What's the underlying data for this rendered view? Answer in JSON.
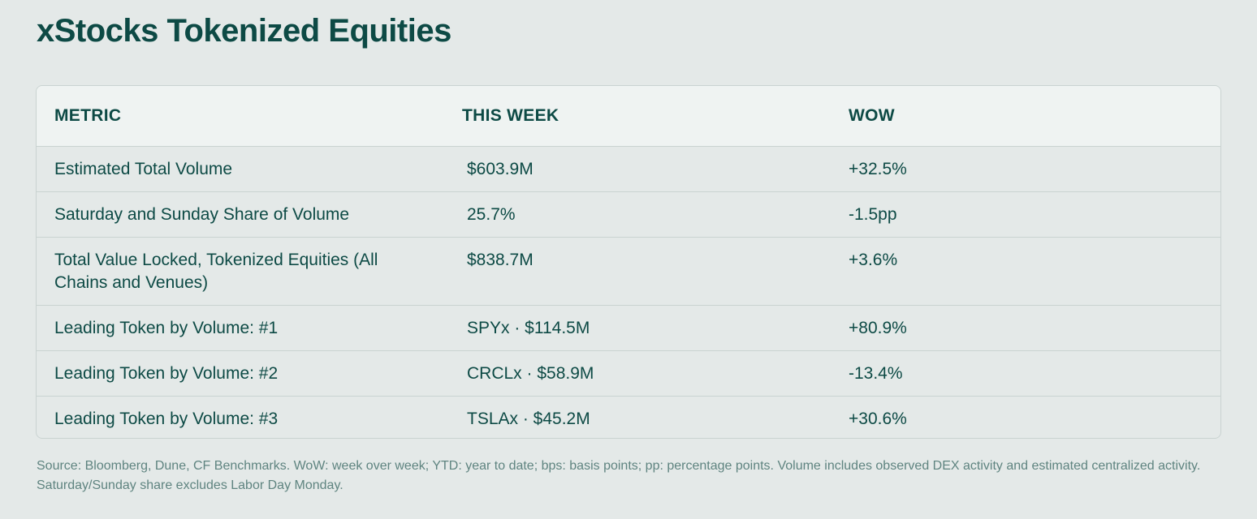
{
  "title": "xStocks Tokenized Equities",
  "table": {
    "headers": [
      "METRIC",
      "THIS WEEK",
      "WOW"
    ],
    "rows": [
      {
        "metric": "Estimated Total Volume",
        "this_week": "$603.9M",
        "wow": "+32.5%"
      },
      {
        "metric": "Saturday and Sunday Share of Volume",
        "this_week": "25.7%",
        "wow": "-1.5pp"
      },
      {
        "metric": "Total Value Locked, Tokenized Equities (All Chains and Venues)",
        "this_week": "$838.7M",
        "wow": "+3.6%"
      },
      {
        "metric": "Leading Token by Volume: #1",
        "this_week": "SPYx · $114.5M",
        "wow": "+80.9%"
      },
      {
        "metric": "Leading Token by Volume: #2",
        "this_week": "CRCLx · $58.9M",
        "wow": "-13.4%"
      },
      {
        "metric": "Leading Token by Volume: #3",
        "this_week": "TSLAx · $45.2M",
        "wow": "+30.6%"
      }
    ]
  },
  "footnote": "Source: Bloomberg, Dune, CF Benchmarks. WoW: week over week; YTD: year to date; bps: basis points; pp: percentage points. Volume includes observed DEX activity and estimated centralized activity. Saturday/Sunday share excludes Labor Day Monday.",
  "colors": {
    "background": "#e4e9e8",
    "header_background": "#eff3f2",
    "text": "#0d4a45",
    "footnote_text": "#5f8480",
    "border": "#c9d3d1"
  }
}
